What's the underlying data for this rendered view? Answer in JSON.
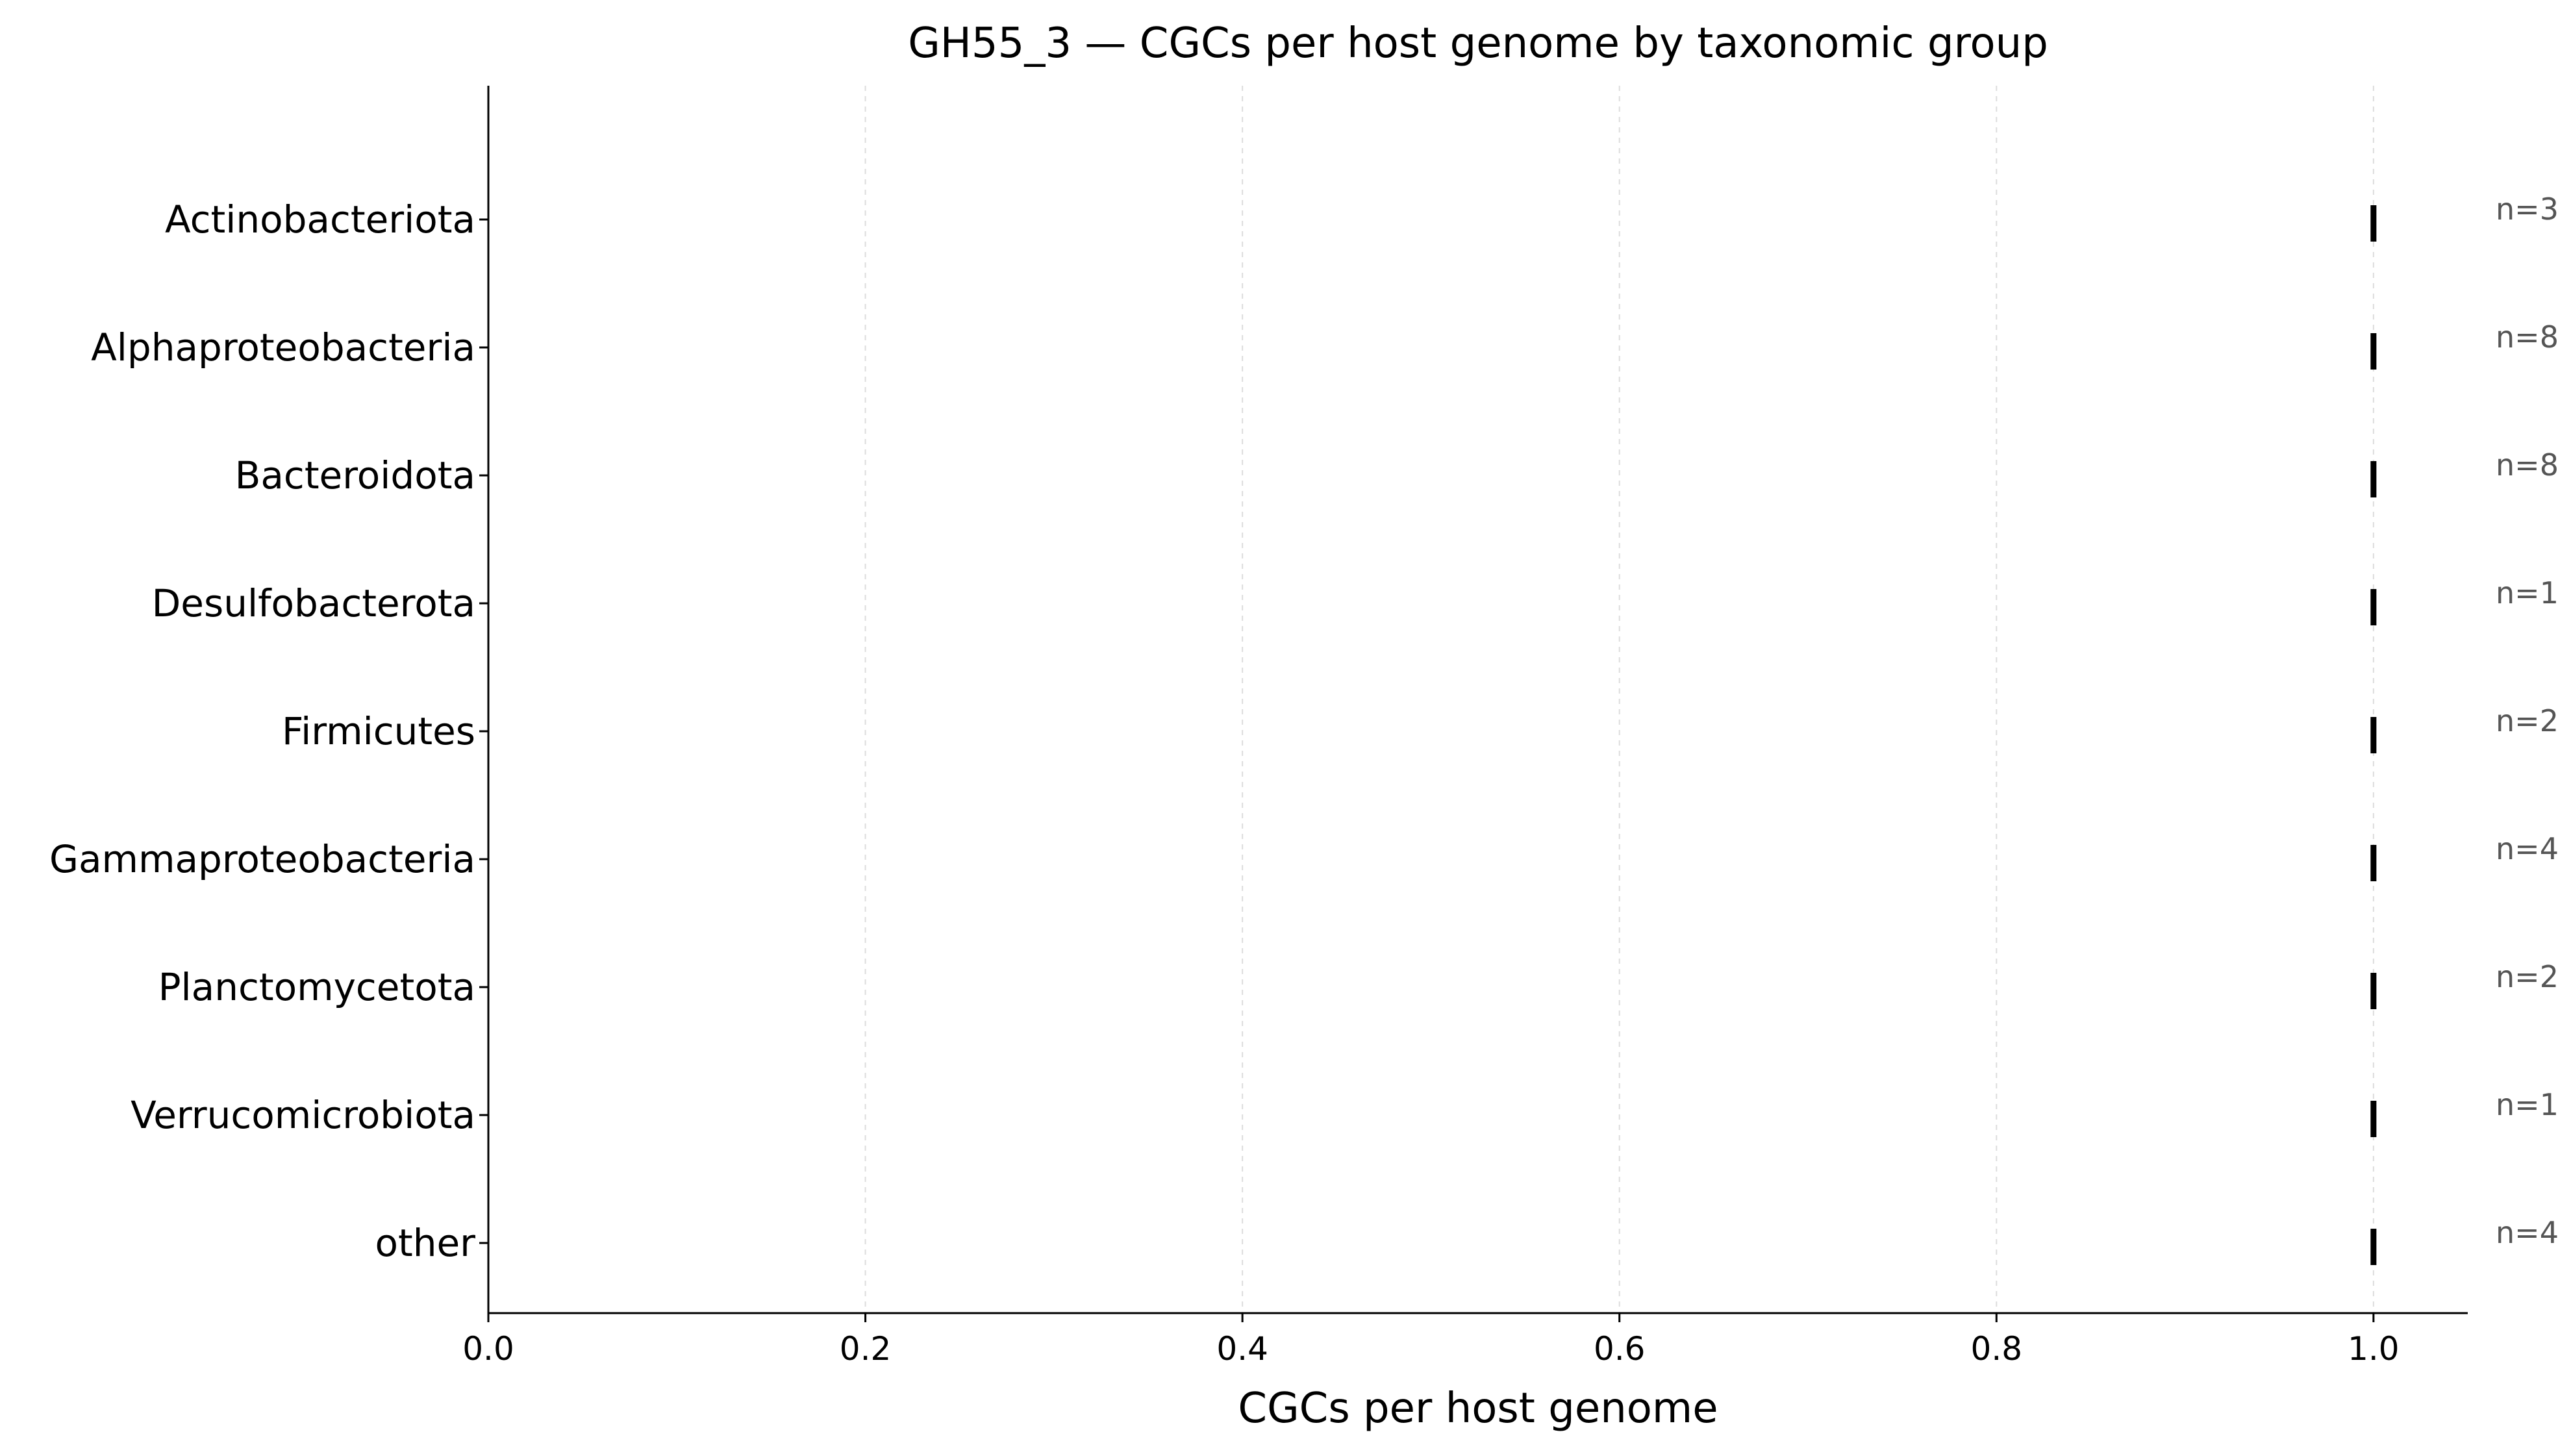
{
  "chart_data": {
    "type": "scatter",
    "title": "GH55_3 — CGCs per host genome by taxonomic group",
    "xlabel": "CGCs per host genome",
    "ylabel": "",
    "xlim": [
      0.0,
      1.05
    ],
    "xticks": [
      0.0,
      0.2,
      0.4,
      0.6,
      0.8,
      1.0
    ],
    "xtick_labels": [
      "0.0",
      "0.2",
      "0.4",
      "0.6",
      "0.8",
      "1.0"
    ],
    "grid": "x-axis, dashed, light",
    "marker": "vertical tick",
    "categories": [
      "Actinobacteriota",
      "Alphaproteobacteria",
      "Bacteroidota",
      "Desulfobacterota",
      "Firmicutes",
      "Gammaproteobacteria",
      "Planctomycetota",
      "Verrucomicrobiota",
      "other"
    ],
    "values": [
      1.0,
      1.0,
      1.0,
      1.0,
      1.0,
      1.0,
      1.0,
      1.0,
      1.0
    ],
    "annotations": [
      "n=3",
      "n=8",
      "n=8",
      "n=1",
      "n=2",
      "n=4",
      "n=2",
      "n=1",
      "n=4"
    ],
    "colors": {
      "marker": "#000000",
      "axis": "#000000",
      "grid": "#dddddd",
      "annotation": "#555555",
      "text": "#000000"
    }
  }
}
